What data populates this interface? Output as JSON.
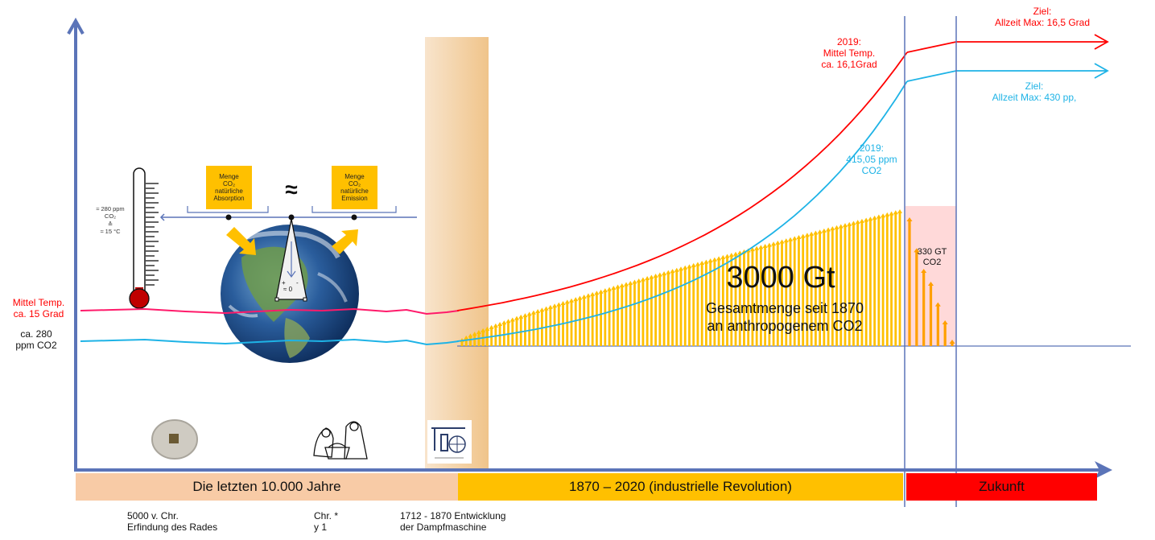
{
  "colors": {
    "axis": "#5b74b8",
    "temperature": "#ff0000",
    "temperature_past": "#ff1a6a",
    "co2": "#1eb3e6",
    "emission_arrows": "#ffc000",
    "future_arrows": "#ffa000",
    "past_band": "#f8cba6",
    "industrial_band": "#ffc000",
    "future_band": "#ff0000",
    "future_zone": "#ffd9d9"
  },
  "left_labels": {
    "temp": "Mittel Temp.\nca. 15 Grad",
    "co2": "ca. 280\nppm CO2"
  },
  "thermometer": {
    "label": "≈ 280 ppm\nCO₂\n≙\n≈ 15 °C",
    "icon": "thermometer-icon"
  },
  "balance": {
    "absorption": "Menge\nCO₂\nnatürliche\nAbsorption",
    "emission": "Menge\nCO₂\nnatürliche\nEmission",
    "approx": "≈",
    "pointer_plus": "+",
    "pointer_minus": "-",
    "pointer_zero": "≈ 0",
    "icon": "earth-globe-icon"
  },
  "annotations": {
    "temp_2019": "2019:\nMittel Temp.\nca. 16,1Grad",
    "co2_2019": "2019:\n415,05 ppm\nCO2",
    "temp_goal": "Ziel:\nAllzeit Max:  16,5 Grad",
    "co2_goal": "Ziel:\nAllzeit Max: 430 pp,",
    "total_big": "3000 Gt",
    "total_sub": "Gesamtmenge seit 1870\nan anthropogenem CO2",
    "future_budget": "330 GT\nCO2"
  },
  "bands": {
    "past": "Die letzten 10.000 Jahre",
    "industrial": "1870 – 2020 (industrielle Revolution)",
    "future": "Zukunft"
  },
  "notes": {
    "wheel": "5000 v. Chr.\nErfindung des Rades",
    "christ": "Chr. *\ny 1",
    "steam": "1712 - 1870 Entwicklung\nder Dampfmaschine"
  },
  "icons": {
    "wheel": "millstone-wheel-icon",
    "nativity": "nativity-scene-icon",
    "steam": "steam-engine-icon"
  },
  "series": {
    "industrial_emission_bars": 105,
    "future_emission_bars": [
      1.0,
      0.76,
      0.6,
      0.5,
      0.34,
      0.2,
      0.05
    ]
  }
}
